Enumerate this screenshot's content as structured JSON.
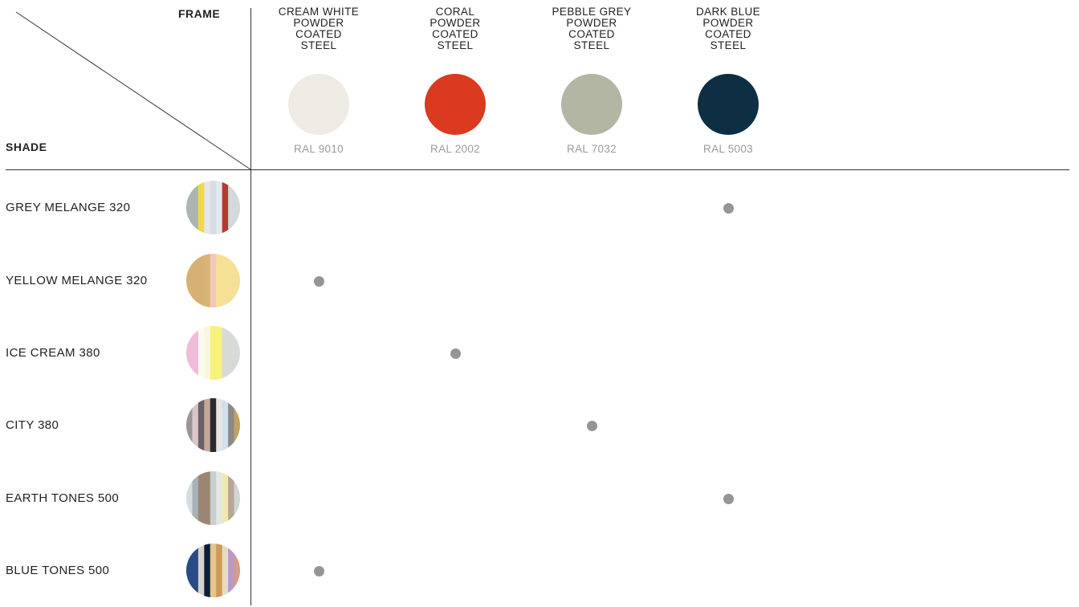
{
  "header": {
    "frame_label": "FRAME",
    "shade_label": "SHADE"
  },
  "frames": [
    {
      "name": "CREAM WHITE\nPOWDER\nCOATED\nSTEEL",
      "ral": "RAL 9010",
      "color": "#eeebe4"
    },
    {
      "name": "CORAL\nPOWDER\nCOATED\nSTEEL",
      "ral": "RAL 2002",
      "color": "#d93a20"
    },
    {
      "name": "PEBBLE GREY\nPOWDER\nCOATED\nSTEEL",
      "ral": "RAL 7032",
      "color": "#b4b6a4"
    },
    {
      "name": "DARK BLUE\nPOWDER\nCOATED\nSTEEL",
      "ral": "RAL 5003",
      "color": "#0e2e44"
    }
  ],
  "shades": [
    {
      "name": "GREY MELANGE 320",
      "frame_index": 3,
      "icon": "grey-melange-swatch",
      "stripes": [
        "#aeb3b5",
        "#aeb3b5",
        "#f1d943",
        "#e3e7ea",
        "#d6dde4",
        "#e4e8ec",
        "#b43a34",
        "#d3d8da",
        "#d3d8da"
      ]
    },
    {
      "name": "YELLOW MELANGE 320",
      "frame_index": 0,
      "icon": "yellow-melange-swatch",
      "stripes": [
        "#d7b074",
        "#d7b074",
        "#d7b074",
        "#d9b47a",
        "#f4c7b7",
        "#f6e096",
        "#f6e096",
        "#f6e096",
        "#f6e096"
      ]
    },
    {
      "name": "ICE CREAM 380",
      "frame_index": 1,
      "icon": "ice-cream-swatch",
      "stripes": [
        "#f0bcd9",
        "#f0bcd9",
        "#fdfbee",
        "#f9f6e0",
        "#f7f17e",
        "#f7f17e",
        "#d7dbd8",
        "#d7dbd8",
        "#d7dbd8"
      ]
    },
    {
      "name": "CITY 380",
      "frame_index": 2,
      "icon": "city-swatch",
      "stripes": [
        "#9a9594",
        "#d8c7c8",
        "#6b6068",
        "#c3a99b",
        "#2a2a2e",
        "#e8e4e6",
        "#cfe0ee",
        "#8d8984",
        "#c5a166"
      ]
    },
    {
      "name": "EARTH TONES 500",
      "frame_index": 3,
      "icon": "earth-tones-swatch",
      "stripes": [
        "#d6dde0",
        "#a8b1b5",
        "#9b8675",
        "#9b8675",
        "#c7cfd0",
        "#e4e6e1",
        "#f1e8b0",
        "#b9a694",
        "#cfd6d8"
      ]
    },
    {
      "name": "BLUE TONES 500",
      "frame_index": 0,
      "icon": "blue-tones-swatch",
      "stripes": [
        "#2a4b85",
        "#2a4b85",
        "#d7d3c8",
        "#0f1d3a",
        "#e6c58a",
        "#cc9a5a",
        "#e8dcc0",
        "#b99ac7",
        "#d99a86"
      ]
    }
  ]
}
